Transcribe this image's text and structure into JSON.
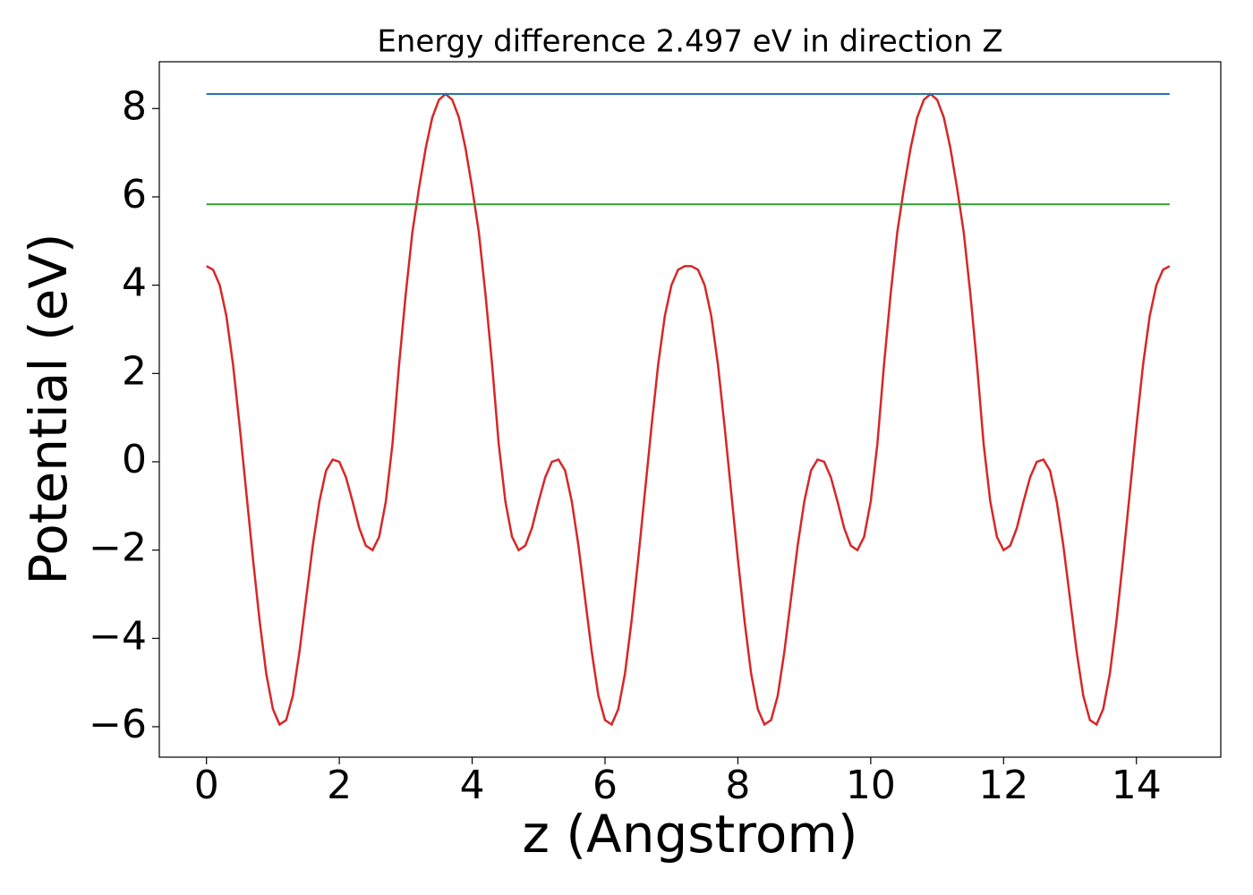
{
  "chart_data": {
    "type": "line",
    "title": "Energy difference 2.497 eV in direction Z",
    "x_label": "z (Angstrom)",
    "y_label": "Potential (eV)",
    "xlim": [
      -0.71,
      15.27
    ],
    "ylim": [
      -6.69,
      9.06
    ],
    "xticks": [
      0,
      2,
      4,
      6,
      8,
      10,
      12,
      14
    ],
    "yticks": [
      {
        "value": -6,
        "label": "−6"
      },
      {
        "value": -4,
        "label": "−4"
      },
      {
        "value": -2,
        "label": "−2"
      },
      0,
      2,
      4,
      6,
      8
    ],
    "series": [
      {
        "color": "#d62728",
        "x": [
          0,
          0.1,
          0.2,
          0.3,
          0.4,
          0.5,
          0.6,
          0.7,
          0.8,
          0.9,
          1,
          1.1,
          1.2,
          1.3,
          1.4,
          1.5,
          1.6,
          1.7,
          1.8,
          1.9,
          2,
          2.1,
          2.2,
          2.3,
          2.4,
          2.5,
          2.6,
          2.7,
          2.8,
          2.9,
          3,
          3.1,
          3.2,
          3.3,
          3.4,
          3.5,
          3.6,
          3.7,
          3.8,
          3.9,
          4,
          4.1,
          4.2,
          4.3,
          4.4,
          4.5,
          4.6,
          4.7,
          4.8,
          4.9,
          5,
          5.1,
          5.2,
          5.3,
          5.4,
          5.5,
          5.6,
          5.7,
          5.8,
          5.9,
          6,
          6.1,
          6.2,
          6.3,
          6.4,
          6.5,
          6.6,
          6.7,
          6.8,
          6.9,
          7,
          7.1,
          7.2,
          7.3,
          7.4,
          7.5,
          7.6,
          7.7,
          7.8,
          7.9,
          8,
          8.1,
          8.2,
          8.3,
          8.4,
          8.5,
          8.6,
          8.7,
          8.8,
          8.9,
          9,
          9.1,
          9.2,
          9.3,
          9.4,
          9.5,
          9.6,
          9.7,
          9.8,
          9.9,
          10,
          10.1,
          10.2,
          10.3,
          10.4,
          10.5,
          10.6,
          10.7,
          10.8,
          10.9,
          11,
          11.1,
          11.2,
          11.3,
          11.4,
          11.5,
          11.6,
          11.7,
          11.8,
          11.9,
          12,
          12.1,
          12.2,
          12.3,
          12.4,
          12.5,
          12.6,
          12.7,
          12.8,
          12.9,
          13,
          13.1,
          13.2,
          13.3,
          13.4,
          13.5,
          13.6,
          13.7,
          13.8,
          13.9,
          14,
          14.1,
          14.2,
          14.3,
          14.4,
          14.5
        ],
        "values": [
          4.43,
          4.35,
          4.0,
          3.3,
          2.2,
          0.8,
          -0.7,
          -2.2,
          -3.6,
          -4.8,
          -5.6,
          -5.95,
          -5.85,
          -5.3,
          -4.3,
          -3.1,
          -1.9,
          -0.9,
          -0.2,
          0.05,
          0,
          -0.35,
          -0.9,
          -1.5,
          -1.9,
          -2.0,
          -1.7,
          -0.9,
          0.4,
          2.2,
          3.8,
          5.2,
          6.2,
          7.1,
          7.8,
          8.2,
          8.33,
          8.2,
          7.8,
          7.1,
          6.2,
          5.2,
          3.8,
          2.2,
          0.4,
          -0.9,
          -1.7,
          -2.0,
          -1.9,
          -1.5,
          -0.9,
          -0.35,
          0,
          0.05,
          -0.2,
          -0.9,
          -1.9,
          -3.1,
          -4.3,
          -5.3,
          -5.85,
          -5.95,
          -5.6,
          -4.8,
          -3.6,
          -2.2,
          -0.7,
          0.8,
          2.2,
          3.3,
          4.0,
          4.35,
          4.43,
          4.43,
          4.35,
          4.0,
          3.3,
          2.2,
          0.8,
          -0.7,
          -2.2,
          -3.6,
          -4.8,
          -5.6,
          -5.95,
          -5.85,
          -5.3,
          -4.3,
          -3.1,
          -1.9,
          -0.9,
          -0.2,
          0.05,
          0,
          -0.35,
          -0.9,
          -1.5,
          -1.9,
          -2.0,
          -1.7,
          -0.9,
          0.4,
          2.2,
          3.8,
          5.2,
          6.2,
          7.1,
          7.8,
          8.2,
          8.33,
          8.2,
          7.8,
          7.1,
          6.2,
          5.2,
          3.8,
          2.2,
          0.4,
          -0.9,
          -1.7,
          -2.0,
          -1.9,
          -1.5,
          -0.9,
          -0.35,
          0,
          0.05,
          -0.2,
          -0.9,
          -1.9,
          -3.1,
          -4.3,
          -5.3,
          -5.85,
          -5.95,
          -5.6,
          -4.8,
          -3.6,
          -2.2,
          -0.7,
          0.8,
          2.2,
          3.3,
          4.0,
          4.35,
          4.43
        ]
      },
      {
        "color": "#1f77b4",
        "x": [
          0,
          14.5
        ],
        "values": [
          8.33,
          8.33
        ]
      },
      {
        "color": "#2ca02c",
        "x": [
          0,
          14.5
        ],
        "values": [
          5.833,
          5.833
        ]
      }
    ]
  }
}
